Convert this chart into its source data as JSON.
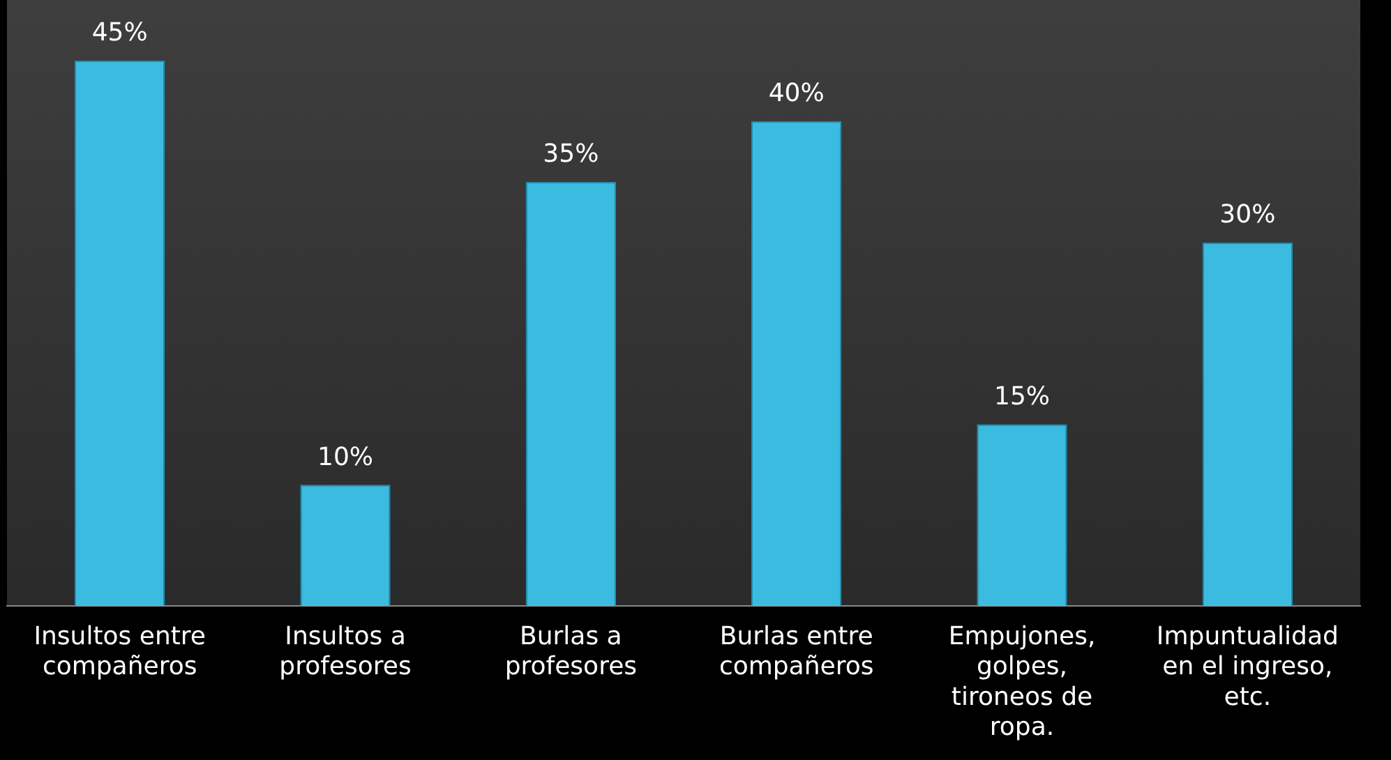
{
  "chart_data": {
    "type": "bar",
    "categories": [
      "Insultos entre compañeros",
      "Insultos a profesores",
      "Burlas a profesores",
      "Burlas entre compañeros",
      "Empujones, golpes, tironeos de ropa.",
      "Impuntualidad en el ingreso, etc."
    ],
    "values": [
      45,
      10,
      35,
      40,
      15,
      30
    ],
    "value_labels": [
      "45%",
      "10%",
      "35%",
      "40%",
      "15%",
      "30%"
    ],
    "color": "#3cbbe0",
    "grid": false,
    "legend": false
  }
}
